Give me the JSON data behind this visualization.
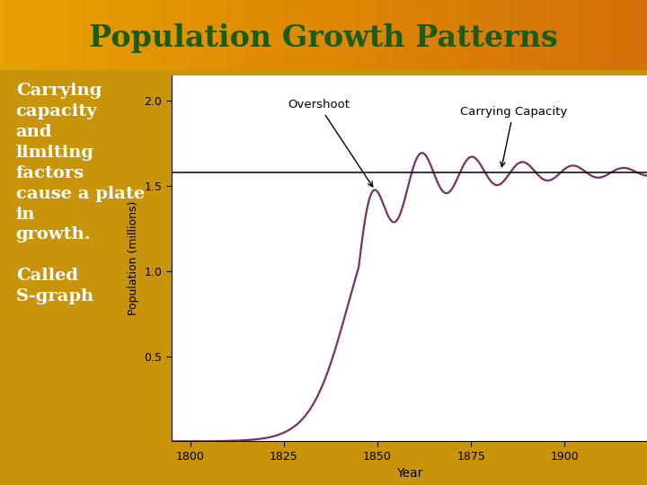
{
  "title": "Population Growth Patterns",
  "title_color": "#1a5c1a",
  "title_bg_left": "#e8a000",
  "title_bg_right": "#d4700a",
  "left_panel_color": "#2d6b2d",
  "left_text_line1": "Carrying",
  "left_text_line2": "capacity",
  "left_text_line3": "and",
  "left_text_line4": "limiting",
  "left_text_line5": "factors",
  "left_text_line6": "cause a plate",
  "left_text_line7": "in",
  "left_text_line8": "growth.",
  "left_text_line9": "",
  "left_text_line10": "Called",
  "left_text_line11": "S-graph",
  "left_text_color": "#ffffff",
  "ylabel": "Population (millions)",
  "xlabel": "Year",
  "carrying_capacity": 1.58,
  "overshoot_label": "Overshoot",
  "cc_label": "Carrying Capacity",
  "xlim": [
    1795,
    1922
  ],
  "ylim": [
    0.0,
    2.15
  ],
  "yticks": [
    0.5,
    1.0,
    1.5,
    2.0
  ],
  "xticks": [
    1800,
    1825,
    1850,
    1875,
    1900
  ],
  "curve_color": "#7a3060",
  "cc_line_color": "#000000",
  "plot_bg": "#ffffff",
  "outer_bg_color": "#c8940a"
}
